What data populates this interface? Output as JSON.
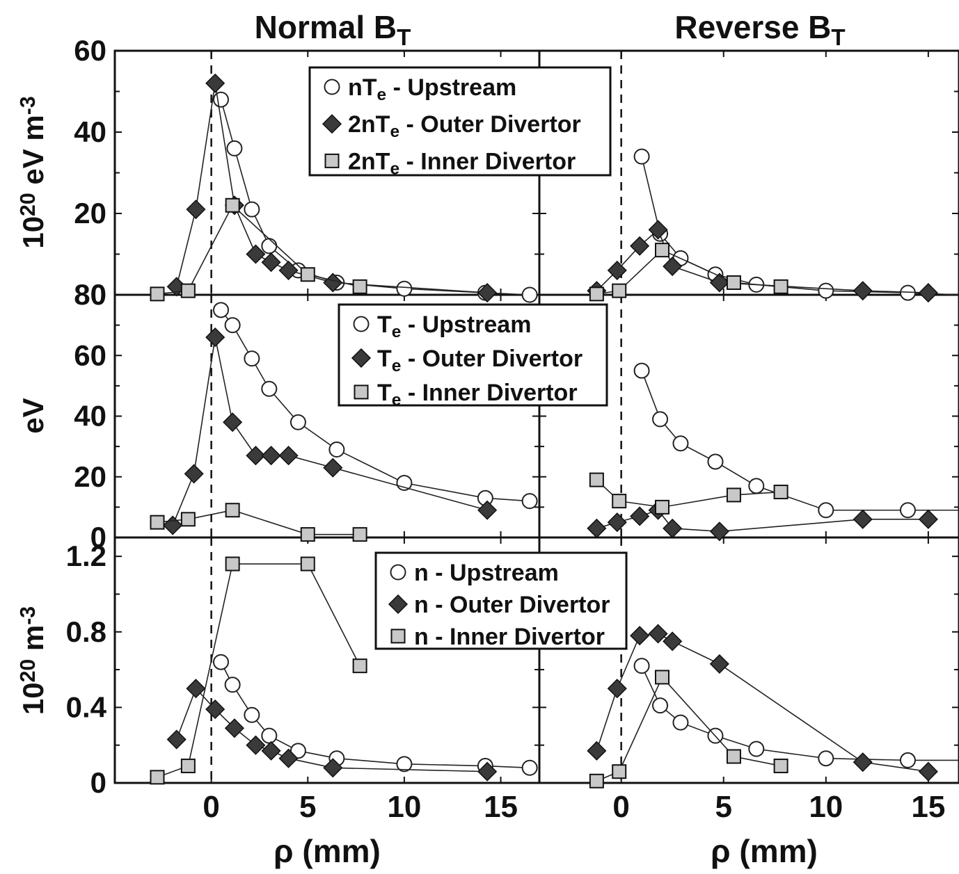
{
  "titles": [
    {
      "text": "Normal B",
      "sub": "T"
    },
    {
      "text": "Reverse B",
      "sub": "T"
    }
  ],
  "xlabel": "ρ (mm)",
  "xticks": [
    "0",
    "5",
    "10",
    "15"
  ],
  "rows": [
    {
      "ylabel": {
        "base": "10",
        "sup1": "20",
        "mid": " eV m",
        "sup2": "-3"
      },
      "ytick_labels": [
        "0",
        "20",
        "40",
        "60"
      ],
      "legend": [
        {
          "marker": "circle",
          "pre": "nT",
          "sub": "e",
          "post": " - Upstream"
        },
        {
          "marker": "diamond",
          "pre": "2nT",
          "sub": "e",
          "post": " - Outer Divertor"
        },
        {
          "marker": "square",
          "pre": "2nT",
          "sub": "e",
          "post": " - Inner Divertor"
        }
      ]
    },
    {
      "ylabel": {
        "base": "eV",
        "sup1": "",
        "mid": "",
        "sup2": ""
      },
      "ytick_labels": [
        "0",
        "20",
        "40",
        "60",
        "80"
      ],
      "legend": [
        {
          "marker": "circle",
          "pre": "T",
          "sub": "e",
          "post": " - Upstream"
        },
        {
          "marker": "diamond",
          "pre": "T",
          "sub": "e",
          "post": " - Outer Divertor"
        },
        {
          "marker": "square",
          "pre": "T",
          "sub": "e",
          "post": " - Inner Divertor"
        }
      ]
    },
    {
      "ylabel": {
        "base": "10",
        "sup1": "20",
        "mid": " m",
        "sup2": "-3"
      },
      "ytick_labels": [
        "0",
        "0.4",
        "0.8",
        "1.2"
      ],
      "legend": [
        {
          "marker": "circle",
          "pre": "n",
          "sub": "",
          "post": " - Upstream"
        },
        {
          "marker": "diamond",
          "pre": "n",
          "sub": "",
          "post": " - Outer Divertor"
        },
        {
          "marker": "square",
          "pre": "n",
          "sub": "",
          "post": " - Inner Divertor"
        }
      ]
    }
  ],
  "colors": {
    "axes": "#111111",
    "line": "#222222",
    "diamond": "#3a3a3a",
    "square": "#c8c8c8",
    "circle": "#ffffff"
  },
  "chart_data": [
    {
      "type": "line",
      "panel": "Normal B_T, pressure",
      "xlim": [
        -5,
        17
      ],
      "ylim": [
        0,
        60
      ],
      "ytick_values": [
        0,
        20,
        40,
        60
      ],
      "xtick_values": [
        0,
        5,
        10,
        15
      ],
      "series": [
        {
          "name": "nTe - Upstream",
          "marker": "circle",
          "x": [
            0.5,
            1.2,
            2.1,
            3.0,
            4.5,
            6.5,
            10,
            14.2,
            16.5
          ],
          "y": [
            48,
            36,
            21,
            12,
            6,
            3,
            1.5,
            0.5,
            0
          ]
        },
        {
          "name": "2nTe - Outer Divertor",
          "marker": "diamond",
          "x": [
            -1.8,
            -0.8,
            0.2,
            1.2,
            2.3,
            3.1,
            4.0,
            6.3,
            14.3
          ],
          "y": [
            2,
            21,
            52,
            22,
            10,
            8,
            6,
            3,
            0.5
          ]
        },
        {
          "name": "2nTe - Inner Divertor",
          "marker": "square",
          "x": [
            -2.8,
            -1.2,
            1.1,
            5.0,
            7.7
          ],
          "y": [
            0.2,
            1,
            22,
            5,
            2
          ]
        }
      ]
    },
    {
      "type": "line",
      "panel": "Reverse B_T, pressure",
      "xlim": [
        -4,
        16.5
      ],
      "ylim": [
        0,
        60
      ],
      "ytick_values": [
        0,
        20,
        40,
        60
      ],
      "xtick_values": [
        0,
        5,
        10,
        15
      ],
      "series": [
        {
          "name": "nTe - Upstream",
          "marker": "circle",
          "x": [
            1,
            1.9,
            2.9,
            4.6,
            6.6,
            10,
            14,
            16.5
          ],
          "y": [
            34,
            15,
            9,
            5,
            2.5,
            1,
            0.5,
            0
          ]
        },
        {
          "name": "2nTe - Outer Divertor",
          "marker": "diamond",
          "x": [
            -1.2,
            -0.2,
            0.9,
            1.8,
            2.5,
            4.8,
            11.8,
            15
          ],
          "y": [
            1,
            6,
            12,
            16,
            7,
            3,
            1,
            0.5
          ]
        },
        {
          "name": "2nTe - Inner Divertor",
          "marker": "square",
          "x": [
            -1.2,
            -0.1,
            2.0,
            5.5,
            7.8
          ],
          "y": [
            0.2,
            1,
            11,
            3,
            2
          ]
        }
      ]
    },
    {
      "type": "line",
      "panel": "Normal B_T, temperature",
      "xlim": [
        -5,
        17
      ],
      "ylim": [
        0,
        80
      ],
      "ytick_values": [
        0,
        20,
        40,
        60,
        80
      ],
      "xtick_values": [
        0,
        5,
        10,
        15
      ],
      "series": [
        {
          "name": "Te - Upstream",
          "marker": "circle",
          "x": [
            0.5,
            1.1,
            2.1,
            3.0,
            4.5,
            6.5,
            10,
            14.2,
            16.5
          ],
          "y": [
            75,
            70,
            59,
            49,
            38,
            29,
            18,
            13,
            12
          ]
        },
        {
          "name": "Te - Outer Divertor",
          "marker": "diamond",
          "x": [
            -2,
            -0.9,
            0.2,
            1.1,
            2.3,
            3.1,
            4.0,
            6.3,
            14.3
          ],
          "y": [
            4,
            21,
            66,
            38,
            27,
            27,
            27,
            23,
            9
          ]
        },
        {
          "name": "Te - Inner Divertor",
          "marker": "square",
          "x": [
            -2.8,
            -1.2,
            1.1,
            5.0,
            7.7
          ],
          "y": [
            5,
            6,
            9,
            1,
            1
          ]
        }
      ]
    },
    {
      "type": "line",
      "panel": "Reverse B_T, temperature",
      "xlim": [
        -4,
        16.5
      ],
      "ylim": [
        0,
        80
      ],
      "ytick_values": [
        0,
        20,
        40,
        60,
        80
      ],
      "xtick_values": [
        0,
        5,
        10,
        15
      ],
      "series": [
        {
          "name": "Te - Upstream",
          "marker": "circle",
          "x": [
            1,
            1.9,
            2.9,
            4.6,
            6.6,
            10,
            14,
            16.5
          ],
          "y": [
            55,
            39,
            31,
            25,
            17,
            9,
            9,
            9
          ]
        },
        {
          "name": "Te - Outer Divertor",
          "marker": "diamond",
          "x": [
            -1.2,
            -0.2,
            0.9,
            1.8,
            2.5,
            4.8,
            11.8,
            15
          ],
          "y": [
            3,
            5,
            7,
            9,
            3,
            2,
            6,
            6
          ]
        },
        {
          "name": "Te - Inner Divertor",
          "marker": "square",
          "x": [
            -1.2,
            -0.1,
            2.0,
            5.5,
            7.8
          ],
          "y": [
            19,
            12,
            10,
            14,
            15
          ]
        }
      ]
    },
    {
      "type": "line",
      "panel": "Normal B_T, density",
      "xlim": [
        -5,
        17
      ],
      "ylim": [
        0,
        1.3
      ],
      "ytick_values": [
        0,
        0.4,
        0.8,
        1.2
      ],
      "xtick_values": [
        0,
        5,
        10,
        15
      ],
      "series": [
        {
          "name": "n - Upstream",
          "marker": "circle",
          "x": [
            0.5,
            1.1,
            2.1,
            3.0,
            4.5,
            6.5,
            10,
            14.2,
            16.5
          ],
          "y": [
            0.64,
            0.52,
            0.36,
            0.25,
            0.17,
            0.13,
            0.1,
            0.09,
            0.08
          ]
        },
        {
          "name": "n - Outer Divertor",
          "marker": "diamond",
          "x": [
            -1.8,
            -0.8,
            0.2,
            1.2,
            2.3,
            3.1,
            4.0,
            6.3,
            14.3
          ],
          "y": [
            0.23,
            0.5,
            0.39,
            0.29,
            0.2,
            0.17,
            0.13,
            0.08,
            0.06
          ]
        },
        {
          "name": "n - Inner Divertor",
          "marker": "square",
          "x": [
            -2.8,
            -1.2,
            1.1,
            5.0,
            7.7
          ],
          "y": [
            0.03,
            0.09,
            1.16,
            1.16,
            0.62
          ]
        }
      ]
    },
    {
      "type": "line",
      "panel": "Reverse B_T, density",
      "xlim": [
        -4,
        16.5
      ],
      "ylim": [
        0,
        1.3
      ],
      "ytick_values": [
        0,
        0.4,
        0.8,
        1.2
      ],
      "xtick_values": [
        0,
        5,
        10,
        15
      ],
      "series": [
        {
          "name": "n - Upstream",
          "marker": "circle",
          "x": [
            1,
            1.9,
            2.9,
            4.6,
            6.6,
            10,
            14,
            16.5
          ],
          "y": [
            0.62,
            0.41,
            0.32,
            0.25,
            0.18,
            0.13,
            0.12,
            0.12
          ]
        },
        {
          "name": "n - Outer Divertor",
          "marker": "diamond",
          "x": [
            -1.2,
            -0.2,
            0.9,
            1.8,
            2.5,
            4.8,
            11.8,
            15
          ],
          "y": [
            0.17,
            0.5,
            0.78,
            0.79,
            0.75,
            0.63,
            0.11,
            0.06
          ]
        },
        {
          "name": "n - Inner Divertor",
          "marker": "square",
          "x": [
            -1.2,
            -0.1,
            2.0,
            5.5,
            7.8
          ],
          "y": [
            0.01,
            0.06,
            0.56,
            0.14,
            0.09
          ]
        }
      ]
    }
  ]
}
